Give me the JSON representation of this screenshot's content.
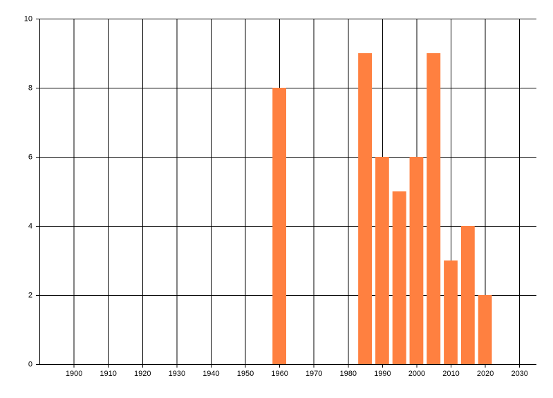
{
  "chart_data": {
    "type": "bar",
    "x": [
      1960,
      1985,
      1990,
      1995,
      2000,
      2005,
      2010,
      2015,
      2020
    ],
    "values": [
      8,
      9,
      6,
      5,
      6,
      9,
      3,
      4,
      2
    ],
    "color": "#ff8040",
    "xlim": [
      1890,
      2035
    ],
    "xticks": [
      1900,
      1910,
      1920,
      1930,
      1940,
      1950,
      1960,
      1970,
      1980,
      1990,
      2000,
      2010,
      2020,
      2030
    ],
    "ylim": [
      0,
      10
    ],
    "yticks": [
      0,
      2,
      4,
      6,
      8,
      10
    ],
    "grid": true
  }
}
